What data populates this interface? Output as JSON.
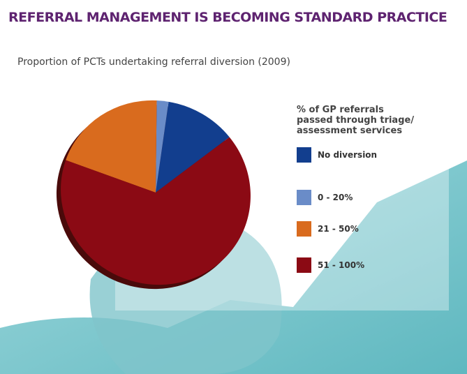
{
  "chart_data": {
    "type": "pie",
    "title": "REFERRAL MANAGEMENT IS BECOMING STANDARD PRACTICE",
    "subtitle": "Proportion of PCTs undertaking referral diversion (2009)",
    "legend_title": "% of GP referrals passed through triage/ assessment services",
    "categories": [
      "No diversion",
      "0 - 20%",
      "21 - 50%",
      "51 - 100%"
    ],
    "values": [
      12,
      2,
      20,
      66
    ],
    "colors": [
      "#123e8e",
      "#6a8cc8",
      "#d96b1e",
      "#8b0a14"
    ],
    "legend": "right"
  }
}
